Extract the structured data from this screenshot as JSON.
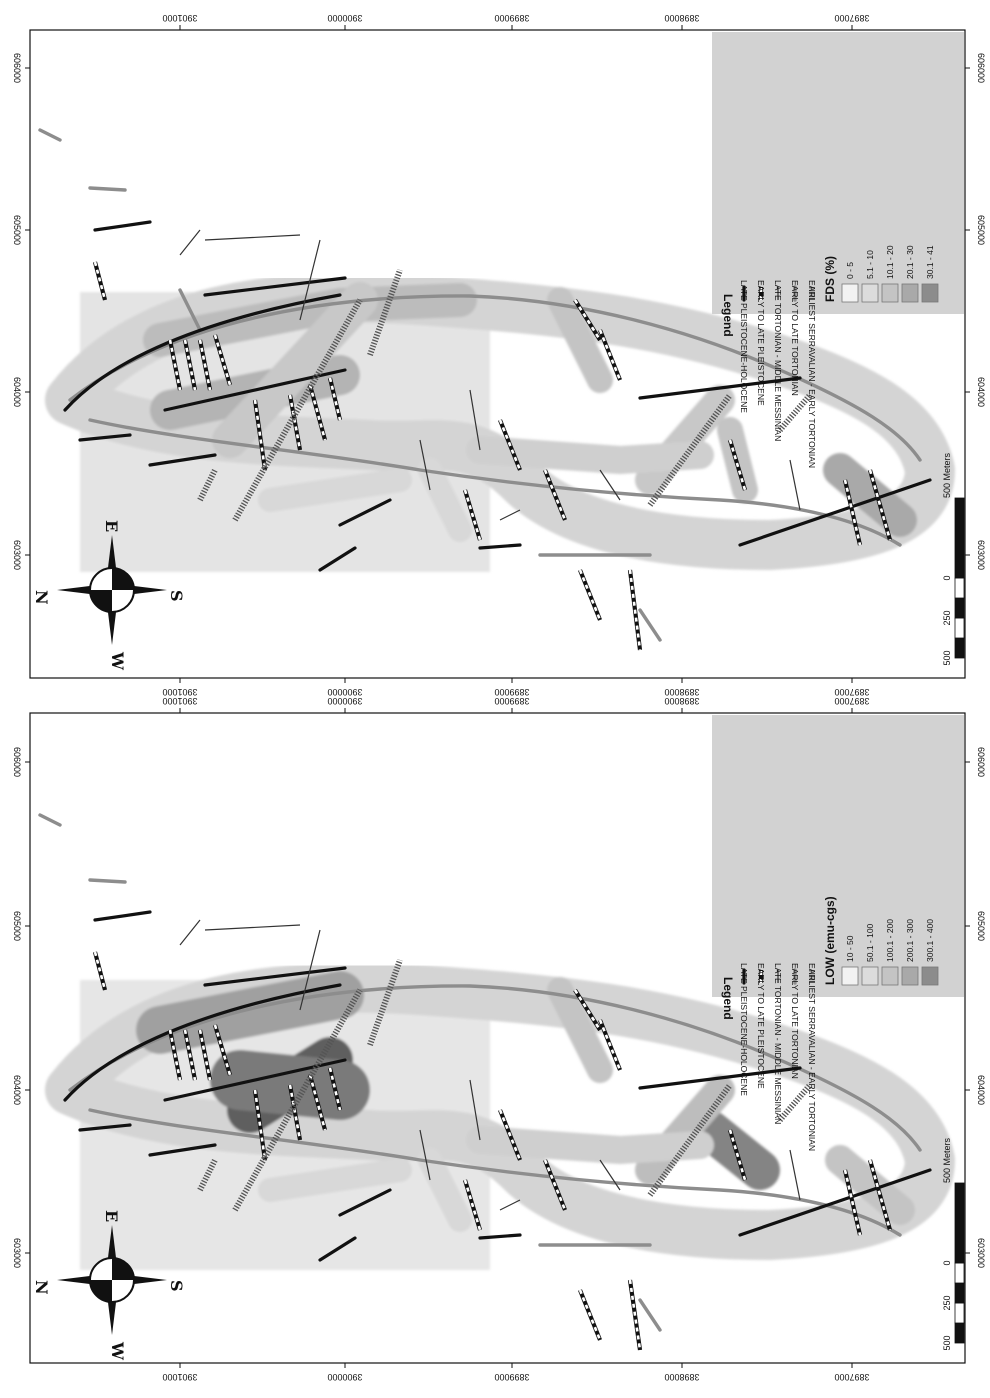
{
  "colors": {
    "buffer_1": "#f2f2f2",
    "buffer_2": "#dcdcdc",
    "buffer_3": "#c4c4c4",
    "buffer_4": "#a9a9a9",
    "buffer_5": "#8c8c8c",
    "legend_bg": "#d2d2d2",
    "fault_black": "#111111",
    "fault_gray": "#8d8d8d"
  },
  "coordinates": {
    "easting_ticks": [
      "603000",
      "604000",
      "605000",
      "606000"
    ],
    "northing_ticks": [
      "3901000",
      "3900000",
      "3899000",
      "3898000",
      "3897000"
    ]
  },
  "compass": {
    "n": "N",
    "e": "E",
    "s": "S",
    "w": "W"
  },
  "scale_bar": {
    "labels": [
      "500",
      "250",
      "0",
      "500 Meters"
    ]
  },
  "legend": {
    "title": "Legend",
    "faults": [
      {
        "label": "LATE PLEISTOCENE-HOLOCENE",
        "style": "solid-black-thick"
      },
      {
        "label": "EARLY TO LATE  PLEISTOCENE",
        "style": "black-white-dashed"
      },
      {
        "label": "LATE TORTONIAN - MIDDLE MESSINIAN",
        "style": "thin-dark"
      },
      {
        "label": "EARLY TO LATE TORTONIAN",
        "style": "gray-thick"
      },
      {
        "label": "EARLIEST SERRAVALIAN - EARLY TORTONIAN",
        "style": "hatched-gray"
      }
    ]
  },
  "panels": [
    {
      "id": "fds",
      "class_title": "FDS (%)",
      "classes": [
        "0 - 5",
        "5.1 - 10",
        "10.1 - 20",
        "20.1 - 30",
        "30.1 - 41"
      ]
    },
    {
      "id": "low",
      "class_title": "LOW (emu-cgs)",
      "classes": [
        "10 - 50",
        "50.1 - 100",
        "100.1 - 200",
        "200.1 - 300",
        "300.1 - 400"
      ]
    }
  ]
}
